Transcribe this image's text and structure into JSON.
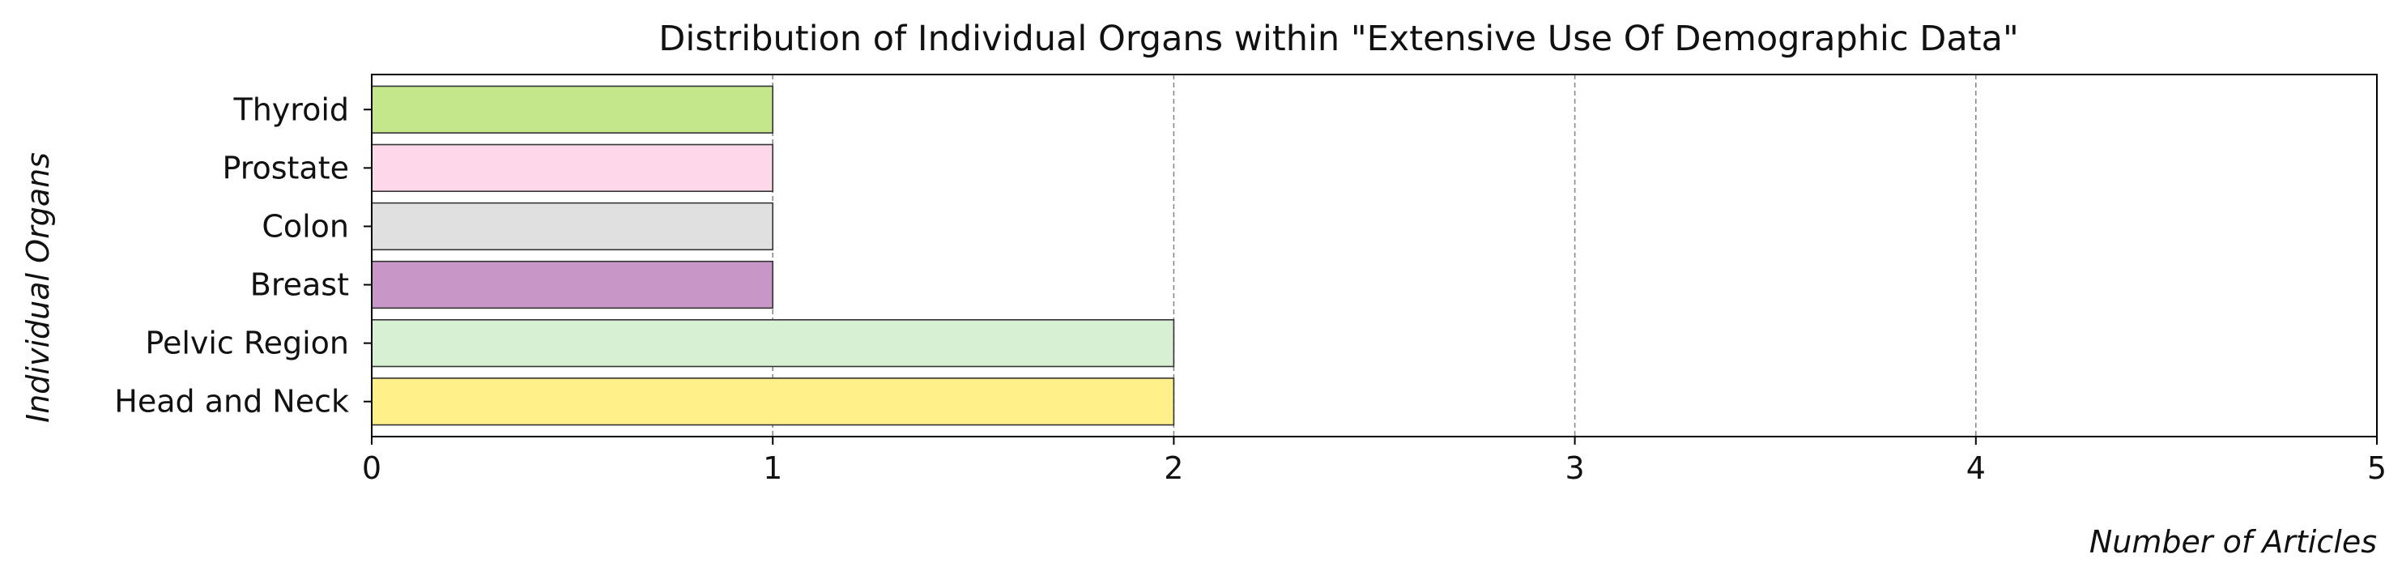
{
  "chart_data": {
    "type": "bar",
    "orientation": "horizontal",
    "title": "Distribution of Individual Organs within \"Extensive Use Of Demographic Data\"",
    "xlabel": "Number of Articles",
    "ylabel": "Individual Organs",
    "categories": [
      "Head and Neck",
      "Pelvic Region",
      "Breast",
      "Colon",
      "Prostate",
      "Thyroid"
    ],
    "values": [
      2,
      2,
      1,
      1,
      1,
      1
    ],
    "colors": [
      "#FFF08A",
      "#D7EFD3",
      "#C996C8",
      "#E0E0E0",
      "#FCD8E8",
      "#C3E78A"
    ],
    "xlim": [
      0,
      5
    ],
    "xticks": [
      "0",
      "1",
      "2",
      "3",
      "4",
      "5"
    ],
    "grid": {
      "x": true,
      "style": "dashed"
    },
    "legend": "none"
  }
}
